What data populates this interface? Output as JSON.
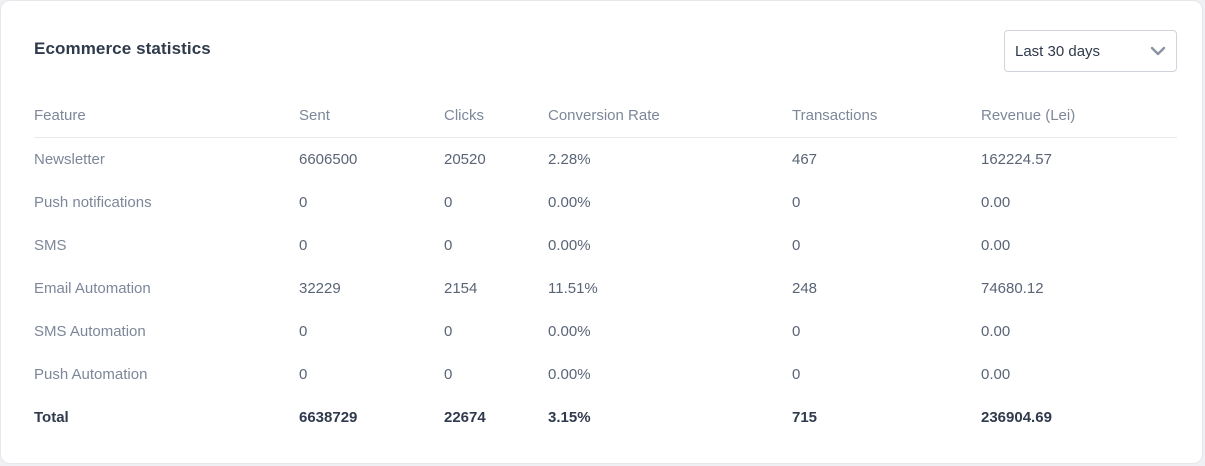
{
  "card": {
    "title": "Ecommerce statistics"
  },
  "period_select": {
    "value": "Last 30 days"
  },
  "table": {
    "headers": {
      "feature": "Feature",
      "sent": "Sent",
      "clicks": "Clicks",
      "conversion_rate": "Conversion Rate",
      "transactions": "Transactions",
      "revenue": "Revenue (Lei)"
    },
    "rows": [
      {
        "feature": "Newsletter",
        "sent": "6606500",
        "clicks": "20520",
        "conversion_rate": "2.28%",
        "transactions": "467",
        "revenue": "162224.57"
      },
      {
        "feature": "Push notifications",
        "sent": "0",
        "clicks": "0",
        "conversion_rate": "0.00%",
        "transactions": "0",
        "revenue": "0.00"
      },
      {
        "feature": "SMS",
        "sent": "0",
        "clicks": "0",
        "conversion_rate": "0.00%",
        "transactions": "0",
        "revenue": "0.00"
      },
      {
        "feature": "Email Automation",
        "sent": "32229",
        "clicks": "2154",
        "conversion_rate": "11.51%",
        "transactions": "248",
        "revenue": "74680.12"
      },
      {
        "feature": "SMS Automation",
        "sent": "0",
        "clicks": "0",
        "conversion_rate": "0.00%",
        "transactions": "0",
        "revenue": "0.00"
      },
      {
        "feature": "Push Automation",
        "sent": "0",
        "clicks": "0",
        "conversion_rate": "0.00%",
        "transactions": "0",
        "revenue": "0.00"
      }
    ],
    "total": {
      "feature": "Total",
      "sent": "6638729",
      "clicks": "22674",
      "conversion_rate": "3.15%",
      "transactions": "715",
      "revenue": "236904.69"
    }
  },
  "icons": {
    "select_arrow": "chevron-down-icon"
  },
  "colors": {
    "heading": "#2f3a4c",
    "muted": "#7d8799",
    "border": "#e6e8ec"
  }
}
